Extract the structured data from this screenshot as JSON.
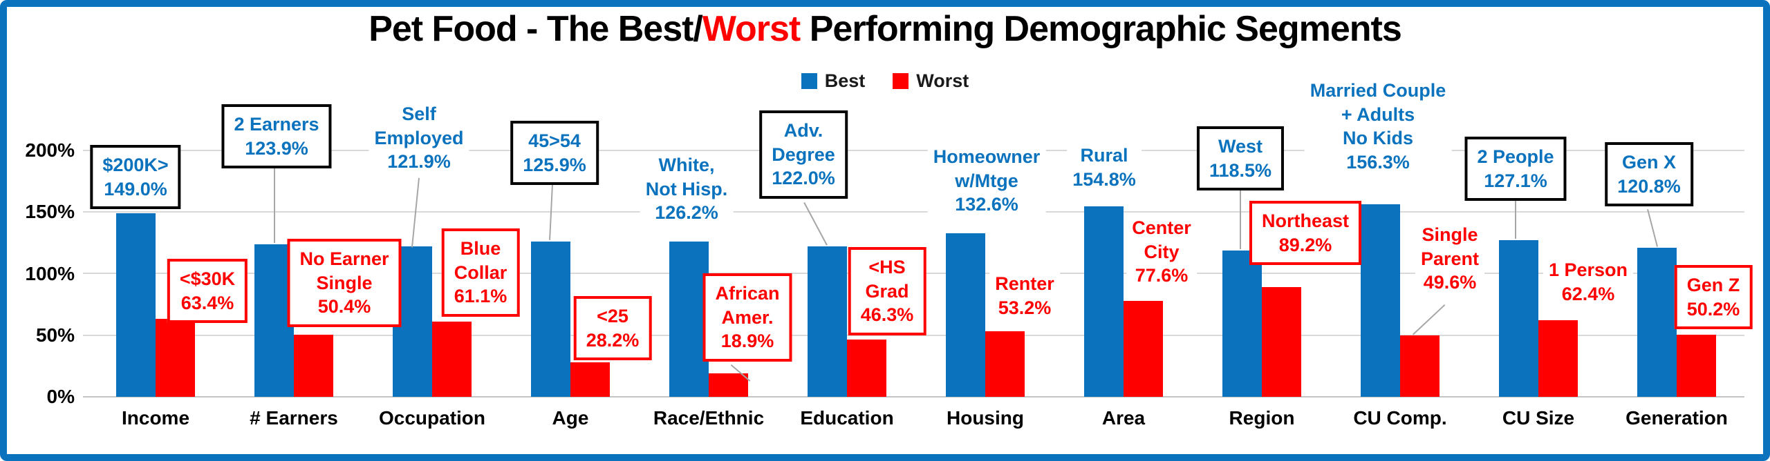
{
  "title": {
    "prefix": "Pet Food - The Best/",
    "highlight": "Worst",
    "suffix": " Performing Demographic Segments"
  },
  "legend": [
    {
      "label": "Best",
      "color": "#0b72be"
    },
    {
      "label": "Worst",
      "color": "#ff0000"
    }
  ],
  "y_axis": {
    "ticks": [
      "200%",
      "150%",
      "100%",
      "50%",
      "0%"
    ]
  },
  "chart_data": {
    "type": "bar",
    "title": "Pet Food - The Best/Worst Performing Demographic Segments",
    "xlabel": "",
    "ylabel": "",
    "ylim": [
      0,
      200
    ],
    "yticks": [
      0,
      50,
      100,
      150,
      200
    ],
    "grid": true,
    "legend_position": "top",
    "categories": [
      "Income",
      "# Earners",
      "Occupation",
      "Age",
      "Race/Ethnic",
      "Education",
      "Housing",
      "Area",
      "Region",
      "CU Comp.",
      "CU Size",
      "Generation"
    ],
    "series": [
      {
        "name": "Best",
        "color": "#0b72be",
        "points": [
          {
            "segment": "$200K>",
            "value": 149.0,
            "label": "$200K>\n149.0%",
            "boxed": true
          },
          {
            "segment": "2 Earners",
            "value": 123.9,
            "label": "2 Earners\n123.9%",
            "boxed": true
          },
          {
            "segment": "Self Employed",
            "value": 121.9,
            "label": "Self\nEmployed\n121.9%",
            "boxed": false
          },
          {
            "segment": "45>54",
            "value": 125.9,
            "label": "45>54\n125.9%",
            "boxed": true
          },
          {
            "segment": "White, Not Hisp.",
            "value": 126.2,
            "label": "White,\nNot Hisp.\n126.2%",
            "boxed": false
          },
          {
            "segment": "Adv. Degree",
            "value": 122.0,
            "label": "Adv.\nDegree\n122.0%",
            "boxed": true
          },
          {
            "segment": "Homeowner w/Mtge",
            "value": 132.6,
            "label": "Homeowner\nw/Mtge\n132.6%",
            "boxed": false
          },
          {
            "segment": "Rural",
            "value": 154.8,
            "label": "Rural\n154.8%",
            "boxed": false
          },
          {
            "segment": "West",
            "value": 118.5,
            "label": "West\n118.5%",
            "boxed": true
          },
          {
            "segment": "Married Couple + Adults No Kids",
            "value": 156.3,
            "label": "Married Couple\n+ Adults\nNo Kids\n156.3%",
            "boxed": false
          },
          {
            "segment": "2 People",
            "value": 127.1,
            "label": "2 People\n127.1%",
            "boxed": true
          },
          {
            "segment": "Gen X",
            "value": 120.8,
            "label": "Gen X\n120.8%",
            "boxed": true
          }
        ]
      },
      {
        "name": "Worst",
        "color": "#ff0000",
        "points": [
          {
            "segment": "<$30K",
            "value": 63.4,
            "label": "<$30K\n63.4%",
            "boxed": true
          },
          {
            "segment": "No Earner Single",
            "value": 50.4,
            "label": "No Earner\nSingle\n50.4%",
            "boxed": true
          },
          {
            "segment": "Blue Collar",
            "value": 61.1,
            "label": "Blue\nCollar\n61.1%",
            "boxed": true
          },
          {
            "segment": "<25",
            "value": 28.2,
            "label": "<25\n28.2%",
            "boxed": true
          },
          {
            "segment": "African Amer.",
            "value": 18.9,
            "label": "African\nAmer.\n18.9%",
            "boxed": true
          },
          {
            "segment": "<HS Grad",
            "value": 46.3,
            "label": "<HS\nGrad\n46.3%",
            "boxed": true
          },
          {
            "segment": "Renter",
            "value": 53.2,
            "label": "Renter\n53.2%",
            "boxed": false
          },
          {
            "segment": "Center City",
            "value": 77.6,
            "label": "Center\nCity\n77.6%",
            "boxed": false
          },
          {
            "segment": "Northeast",
            "value": 89.2,
            "label": "Northeast\n89.2%",
            "boxed": true
          },
          {
            "segment": "Single Parent",
            "value": 49.6,
            "label": "Single\nParent\n49.6%",
            "boxed": false
          },
          {
            "segment": "1 Person",
            "value": 62.4,
            "label": "1 Person\n62.4%",
            "boxed": false
          },
          {
            "segment": "Gen Z",
            "value": 50.2,
            "label": "Gen Z\n50.2%",
            "boxed": true
          }
        ]
      }
    ]
  }
}
